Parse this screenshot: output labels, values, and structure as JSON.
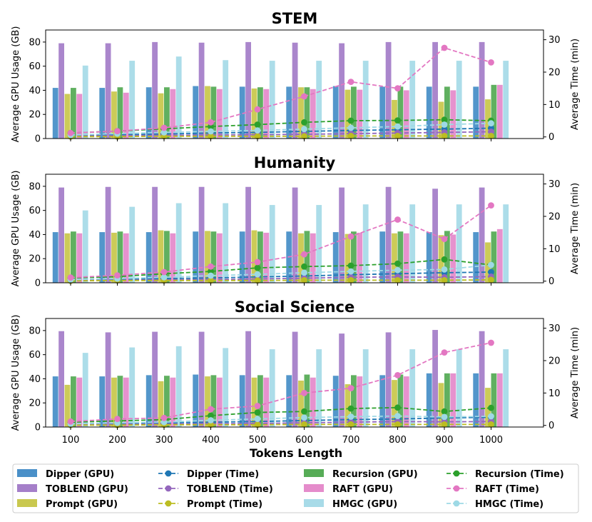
{
  "chart_data": {
    "type": "bar",
    "subtype": "grouped bar + dual-axis line",
    "xlabel": "Tokens Length",
    "ylabel_left": "Average GPU Usage (GB)",
    "ylabel_right": "Average Time (min)",
    "categories": [
      "100",
      "200",
      "300",
      "400",
      "500",
      "600",
      "700",
      "800",
      "900",
      "1000"
    ],
    "gpu_ylim": [
      0,
      90
    ],
    "gpu_ticks": [
      "0",
      "20",
      "40",
      "60",
      "80"
    ],
    "time_ylim": [
      -0.5,
      33
    ],
    "time_ticks": [
      "0",
      "10",
      "20",
      "30"
    ],
    "methods": [
      {
        "name": "Dipper",
        "color": "#4a90c8"
      },
      {
        "name": "TOBLEND",
        "color": "#a57fc9"
      },
      {
        "name": "Prompt",
        "color": "#c9c84f"
      },
      {
        "name": "Recursion",
        "color": "#57ac57"
      },
      {
        "name": "RAFT",
        "color": "#e58ccb"
      },
      {
        "name": "HMGC",
        "color": "#a8dbe8"
      }
    ],
    "line_colors": {
      "Dipper": "#1f77b4",
      "TOBLEND": "#9467bd",
      "Prompt": "#bcbd22",
      "Recursion": "#2ca02c",
      "RAFT": "#e377c2",
      "HMGC": "#9ed9e5"
    },
    "panels": [
      {
        "title": "STEM",
        "gpu": [
          {
            "name": "Dipper",
            "values": [
              42,
              42,
              42.5,
              43.5,
              43,
              43,
              43.5,
              43,
              43,
              43
            ]
          },
          {
            "name": "TOBLEND",
            "values": [
              79,
              79,
              80,
              79.5,
              80,
              79.5,
              79,
              80,
              80,
              80
            ]
          },
          {
            "name": "Prompt",
            "values": [
              37,
              39,
              37.5,
              43.5,
              41.5,
              42.5,
              40.5,
              32,
              30.5,
              32.5
            ]
          },
          {
            "name": "Recursion",
            "values": [
              42,
              42.5,
              42.5,
              43,
              42.5,
              42.5,
              43,
              43,
              43,
              44.5
            ]
          },
          {
            "name": "RAFT",
            "values": [
              37,
              38,
              41,
              41,
              41,
              41,
              40.5,
              40,
              40,
              44.5
            ]
          },
          {
            "name": "HMGC",
            "values": [
              60.5,
              64.5,
              68,
              65,
              64.5,
              64.5,
              64.5,
              64.5,
              64.5,
              64.5
            ]
          }
        ],
        "time": [
          {
            "name": "Dipper",
            "values": [
              0.4,
              0.7,
              0.9,
              1.2,
              1.4,
              1.7,
              2,
              2.2,
              2.4,
              2.7
            ]
          },
          {
            "name": "TOBLEND",
            "values": [
              0.2,
              0.4,
              0.5,
              0.6,
              0.7,
              0.8,
              1,
              1.2,
              1.4,
              1.6
            ]
          },
          {
            "name": "Prompt",
            "values": [
              0.1,
              0.1,
              0.2,
              0.2,
              0.2,
              0.2,
              0.3,
              0.3,
              0.3,
              0.3
            ]
          },
          {
            "name": "Recursion",
            "values": [
              1.2,
              1.8,
              2.5,
              3.2,
              3.8,
              4.5,
              5,
              5.1,
              5.3,
              5
            ]
          },
          {
            "name": "RAFT",
            "values": [
              1.2,
              1.8,
              2.8,
              4.5,
              8.5,
              12.5,
              17,
              15,
              27.5,
              23
            ]
          },
          {
            "name": "HMGC",
            "values": [
              0.6,
              1,
              1.4,
              1.7,
              2,
              2.4,
              2.8,
              3.2,
              3.8,
              4.2
            ]
          }
        ]
      },
      {
        "title": "Humanity",
        "gpu": [
          {
            "name": "Dipper",
            "values": [
              42,
              42,
              42,
              42.5,
              42.5,
              42.5,
              42,
              42.5,
              42,
              42
            ]
          },
          {
            "name": "TOBLEND",
            "values": [
              79,
              79.5,
              79.5,
              79.5,
              79.5,
              79,
              79,
              79.5,
              78,
              79
            ]
          },
          {
            "name": "Prompt",
            "values": [
              41,
              41.5,
              43.5,
              43,
              43.5,
              41,
              40.5,
              41,
              39.5,
              33.5
            ]
          },
          {
            "name": "Recursion",
            "values": [
              42.5,
              42.5,
              43,
              42.5,
              42.5,
              43,
              42.5,
              42.5,
              43,
              42.5
            ]
          },
          {
            "name": "RAFT",
            "values": [
              41,
              41,
              41,
              41,
              41.5,
              41,
              41.5,
              41,
              40,
              44.5
            ]
          },
          {
            "name": "HMGC",
            "values": [
              60,
              63,
              66,
              66,
              64.5,
              64.5,
              65,
              65,
              65,
              65
            ]
          }
        ],
        "time": [
          {
            "name": "Dipper",
            "values": [
              0.3,
              0.6,
              0.8,
              1,
              1.3,
              1.6,
              2,
              2.3,
              2.6,
              2.8
            ]
          },
          {
            "name": "TOBLEND",
            "values": [
              0.2,
              0.3,
              0.4,
              0.5,
              0.7,
              0.9,
              1.2,
              1.3,
              1.2,
              1.4
            ]
          },
          {
            "name": "Prompt",
            "values": [
              0.1,
              0.2,
              0.2,
              0.2,
              0.2,
              0.3,
              0.3,
              0.3,
              0.3,
              0.4
            ]
          },
          {
            "name": "Recursion",
            "values": [
              1,
              1.4,
              2.3,
              3,
              4.1,
              4.5,
              4.8,
              5.4,
              6.7,
              5
            ]
          },
          {
            "name": "RAFT",
            "values": [
              1.1,
              1.8,
              2.8,
              4.5,
              5.9,
              8.3,
              13.8,
              19,
              13,
              23.4
            ]
          },
          {
            "name": "HMGC",
            "values": [
              0.5,
              0.8,
              1.2,
              1.7,
              2.1,
              2.6,
              3,
              3.4,
              3.6,
              5
            ]
          }
        ]
      },
      {
        "title": "Social Science",
        "gpu": [
          {
            "name": "Dipper",
            "values": [
              42,
              42,
              43,
              43.5,
              43,
              43,
              42.5,
              43,
              44.5,
              44.5
            ]
          },
          {
            "name": "TOBLEND",
            "values": [
              79.5,
              78.5,
              79,
              79,
              79.5,
              79,
              77.5,
              78.5,
              80.5,
              79.5
            ]
          },
          {
            "name": "Prompt",
            "values": [
              35,
              41,
              38,
              42,
              41,
              38.5,
              35.5,
              39,
              36.5,
              32.5
            ]
          },
          {
            "name": "Recursion",
            "values": [
              42,
              42.5,
              42.5,
              43,
              43,
              43.5,
              43,
              43.5,
              44.5,
              44.5
            ]
          },
          {
            "name": "RAFT",
            "values": [
              41,
              41,
              41,
              41,
              41,
              41,
              42,
              42,
              44.5,
              44.5
            ]
          },
          {
            "name": "HMGC",
            "values": [
              61.5,
              66,
              67,
              65.5,
              64.5,
              64.5,
              64.5,
              64.5,
              64.5,
              64.5
            ]
          }
        ],
        "time": [
          {
            "name": "Dipper",
            "values": [
              0.4,
              0.6,
              0.8,
              1,
              1.2,
              1.5,
              1.8,
              2,
              2.3,
              2.5
            ]
          },
          {
            "name": "TOBLEND",
            "values": [
              0.2,
              0.3,
              0.4,
              0.5,
              0.6,
              0.8,
              1,
              1.2,
              1.1,
              1.2
            ]
          },
          {
            "name": "Prompt",
            "values": [
              0.1,
              0.1,
              0.2,
              0.2,
              0.2,
              0.3,
              0.3,
              0.3,
              0.3,
              0.3
            ]
          },
          {
            "name": "Recursion",
            "values": [
              1,
              1.4,
              1.8,
              3,
              4,
              4.3,
              5.2,
              5.5,
              4.3,
              5.4
            ]
          },
          {
            "name": "RAFT",
            "values": [
              1.2,
              2,
              2.3,
              5,
              6,
              10,
              11.5,
              15.5,
              22.5,
              25.5
            ]
          },
          {
            "name": "HMGC",
            "values": [
              0.5,
              0.8,
              1,
              1.6,
              2,
              2.4,
              2.7,
              2.9,
              2.6,
              2.8
            ]
          }
        ]
      }
    ],
    "legend": [
      {
        "label": "Dipper (GPU)",
        "kind": "bar",
        "color": "#4a90c8"
      },
      {
        "label": "Dipper (Time)",
        "kind": "line",
        "color": "#1f77b4"
      },
      {
        "label": "Recursion (GPU)",
        "kind": "bar",
        "color": "#57ac57"
      },
      {
        "label": "Recursion (Time)",
        "kind": "line",
        "color": "#2ca02c"
      },
      {
        "label": "TOBLEND (GPU)",
        "kind": "bar",
        "color": "#a57fc9"
      },
      {
        "label": "TOBLEND (Time)",
        "kind": "line",
        "color": "#9467bd"
      },
      {
        "label": "RAFT (GPU)",
        "kind": "bar",
        "color": "#e58ccb"
      },
      {
        "label": "RAFT (Time)",
        "kind": "line",
        "color": "#e377c2"
      },
      {
        "label": "Prompt (GPU)",
        "kind": "bar",
        "color": "#c9c84f"
      },
      {
        "label": "Prompt (Time)",
        "kind": "line",
        "color": "#bcbd22"
      },
      {
        "label": "HMGC (GPU)",
        "kind": "bar",
        "color": "#a8dbe8"
      },
      {
        "label": "HMGC (Time)",
        "kind": "line",
        "color": "#9ed9e5"
      }
    ]
  }
}
